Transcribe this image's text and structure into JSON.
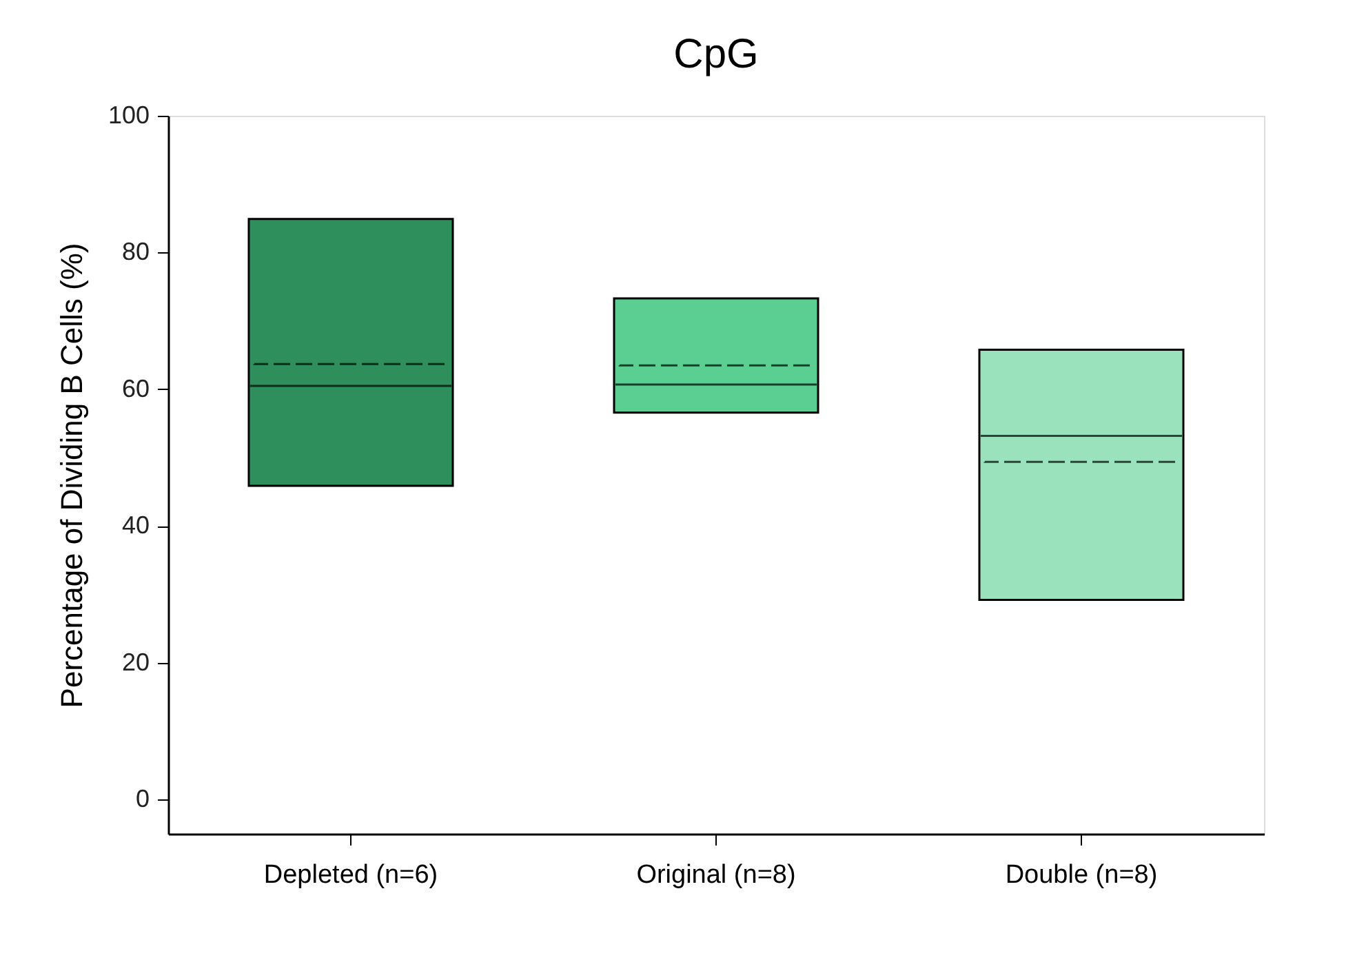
{
  "chart_data": {
    "type": "box",
    "title": "CpG",
    "ylabel": "Percentage of Dividing B Cells (%)",
    "categories": [
      "Depleted (n=6)",
      "Original (n=8)",
      "Double (n=8)"
    ],
    "boxes": [
      {
        "low": 45.9,
        "q1": 45.9,
        "median": 60.5,
        "q3": 84.9,
        "high": 84.9,
        "mean": 63.7
      },
      {
        "low": 56.6,
        "q1": 56.6,
        "median": 60.7,
        "q3": 73.3,
        "high": 73.3,
        "mean": 63.5
      },
      {
        "low": 29.2,
        "q1": 29.2,
        "median": 53.2,
        "q3": 65.8,
        "high": 65.8,
        "mean": 49.4
      }
    ],
    "colors": [
      "#2e8f5c",
      "#5bcf92",
      "#9ae2bb"
    ],
    "ylim": [
      -5,
      100
    ],
    "yticks": [
      0,
      20,
      40,
      60,
      80,
      100
    ],
    "grid": false,
    "legend": false
  }
}
